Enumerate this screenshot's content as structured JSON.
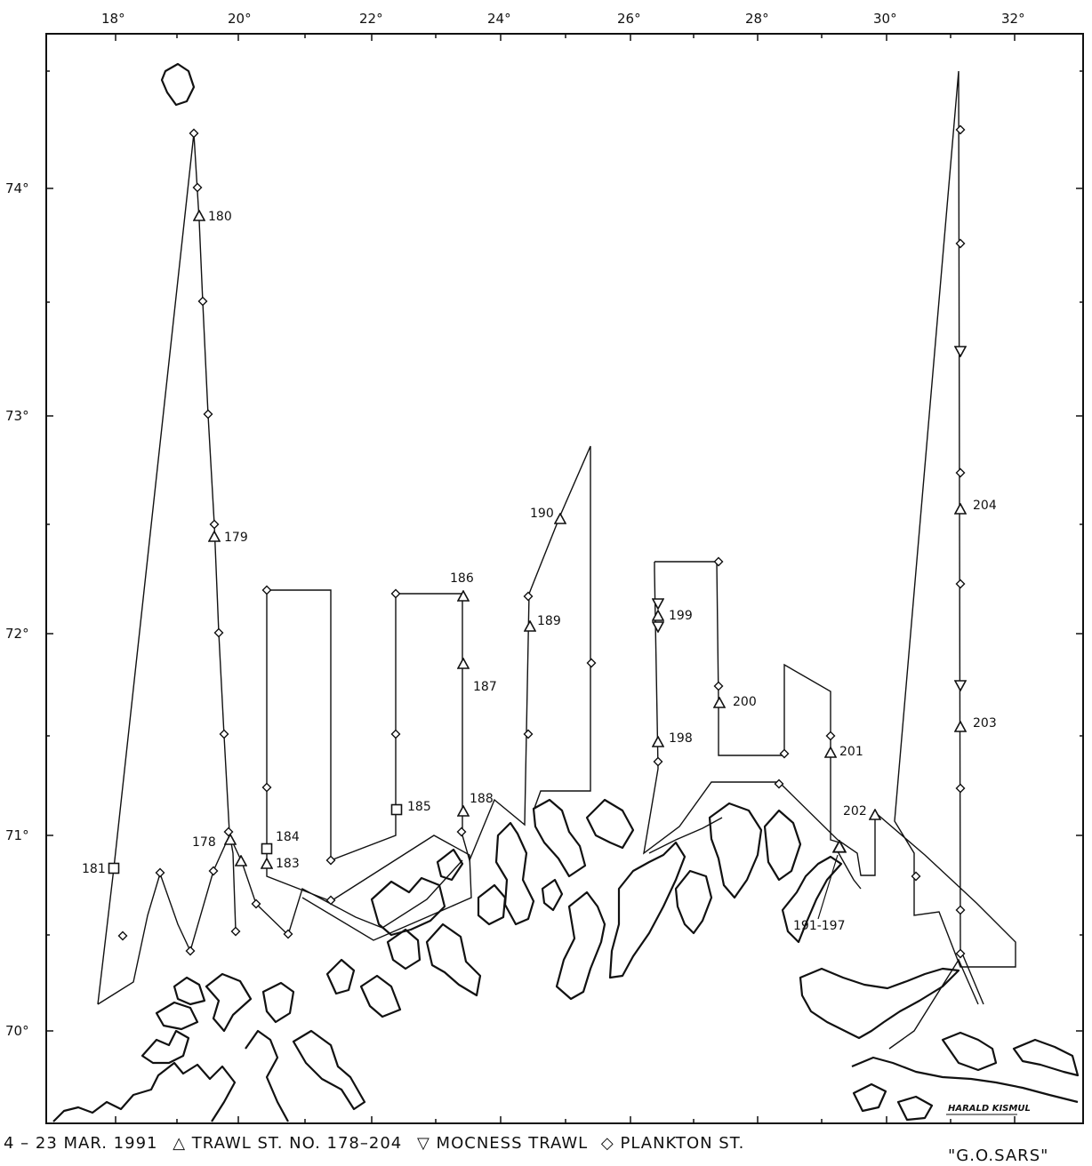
{
  "map": {
    "longitude_ticks": [
      "18°",
      "20°",
      "22°",
      "24°",
      "26°",
      "28°",
      "30°",
      "32°"
    ],
    "latitude_ticks": [
      "74°",
      "73°",
      "72°",
      "71°",
      "70°"
    ],
    "station_labels": [
      "180",
      "179",
      "178",
      "184",
      "183",
      "181",
      "185",
      "186",
      "187",
      "188",
      "189",
      "190",
      "199",
      "198",
      "200",
      "201",
      "202",
      "191-197",
      "204",
      "203"
    ],
    "credit": "HARALD KISMUL"
  },
  "legend": {
    "dates": "4 – 23 MAR. 1991",
    "trawl": "TRAWL ST. NO. 178–204",
    "mocness": "MOCNESS TRAWL",
    "plankton": "PLANKTON ST."
  },
  "vessel": "\"G.O.SARS\""
}
